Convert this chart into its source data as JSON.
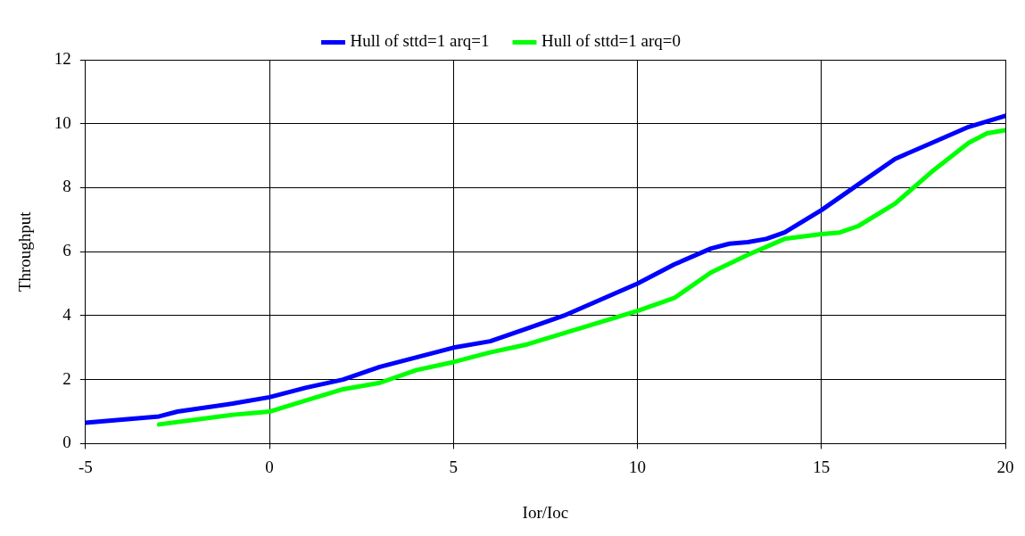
{
  "chart_data": {
    "type": "line",
    "xlabel": "Ior/Ioc",
    "ylabel": "Throughput",
    "xlim": [
      -5,
      20
    ],
    "xticks": [
      -5,
      0,
      5,
      10,
      15,
      20
    ],
    "ylim": [
      0,
      12
    ],
    "yticks": [
      0,
      2,
      4,
      6,
      8,
      10,
      12
    ],
    "grid": true,
    "legend": "top",
    "marker": "none",
    "line_style": "solid",
    "series": [
      {
        "name": "Hull of sttd=1 arq=1",
        "color": "#0000ff",
        "x": [
          -5,
          -3,
          -2.5,
          -1,
          0,
          1,
          2,
          3,
          4,
          5,
          6,
          7,
          8,
          9,
          10,
          11,
          12,
          12.5,
          13,
          13.5,
          14,
          15,
          16,
          17,
          18,
          19,
          20
        ],
        "values": [
          0.65,
          0.85,
          1.0,
          1.25,
          1.45,
          1.75,
          2.0,
          2.4,
          2.7,
          3.0,
          3.2,
          3.6,
          4.0,
          4.5,
          5.0,
          5.6,
          6.1,
          6.25,
          6.3,
          6.4,
          6.6,
          7.3,
          8.1,
          8.9,
          9.4,
          9.9,
          10.25
        ]
      },
      {
        "name": "Hull of sttd=1 arq=0",
        "color": "#00ff00",
        "x": [
          -3,
          -2,
          -1,
          0,
          1,
          2,
          3,
          4,
          5,
          6,
          7,
          8,
          9,
          10,
          11,
          12,
          13,
          14,
          15,
          15.5,
          16,
          17,
          18,
          19,
          19.5,
          20
        ],
        "values": [
          0.6,
          0.75,
          0.9,
          1.0,
          1.35,
          1.7,
          1.9,
          2.3,
          2.55,
          2.85,
          3.1,
          3.45,
          3.8,
          4.15,
          4.55,
          5.35,
          5.9,
          6.4,
          6.55,
          6.6,
          6.8,
          7.5,
          8.5,
          9.4,
          9.7,
          9.8
        ]
      }
    ]
  }
}
